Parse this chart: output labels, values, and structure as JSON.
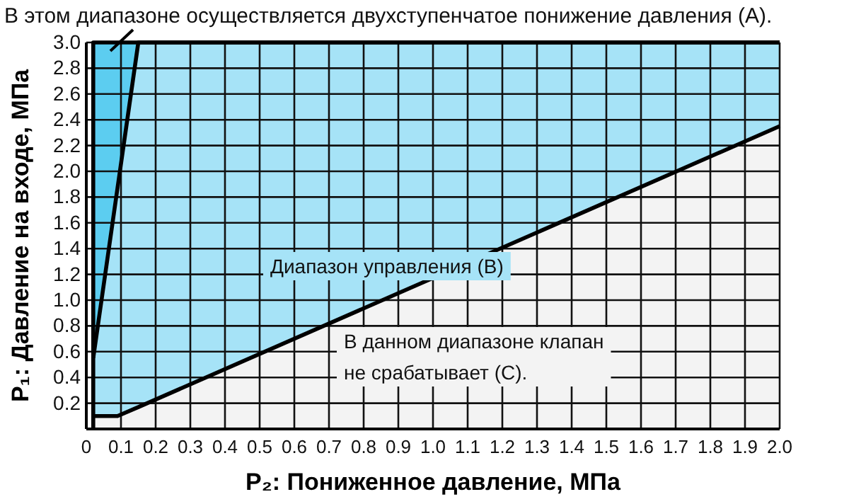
{
  "chart_data": {
    "type": "area",
    "xlabel": "P₂: Пониженное давление, МПа",
    "ylabel": "P₁: Давление на входе, МПа",
    "xlim": [
      0,
      2.0
    ],
    "ylim": [
      0,
      3.0
    ],
    "xticks": [
      0,
      0.1,
      0.2,
      0.3,
      0.4,
      0.5,
      0.6,
      0.7,
      0.8,
      0.9,
      {
        "value": 1,
        "label": "1.0"
      },
      1.1,
      1.2,
      1.3,
      1.4,
      1.5,
      1.6,
      1.7,
      1.8,
      1.9,
      {
        "value": 2,
        "label": "2.0"
      }
    ],
    "yticks": [
      0.2,
      0.4,
      0.6,
      0.8,
      {
        "value": 1,
        "label": "1.0"
      },
      1.2,
      1.4,
      1.6,
      1.8,
      {
        "value": 2,
        "label": "2.0"
      },
      2.2,
      2.4,
      2.6,
      2.8,
      {
        "value": 3,
        "label": "3.0"
      }
    ],
    "grid": true,
    "stacked": true,
    "x": [
      0.02,
      0.09,
      0.15,
      2.0
    ],
    "series": [
      {
        "color": "#f3f3f3",
        "values": [
          0.1,
          0.1,
          0.17,
          2.35
        ]
      },
      {
        "color": "#a6e3f7",
        "values": [
          0.45,
          1.77,
          2.83,
          0.65
        ]
      },
      {
        "color": "#5ccdf0",
        "values": [
          2.45,
          1.13,
          0,
          0
        ]
      }
    ],
    "annotations": [
      "В этом диапазоне осуществляется двухступенчатое понижение давления (A).",
      "Диапазон управления (B)",
      "В данном диапазоне клапан не срабатывает (С)."
    ]
  }
}
